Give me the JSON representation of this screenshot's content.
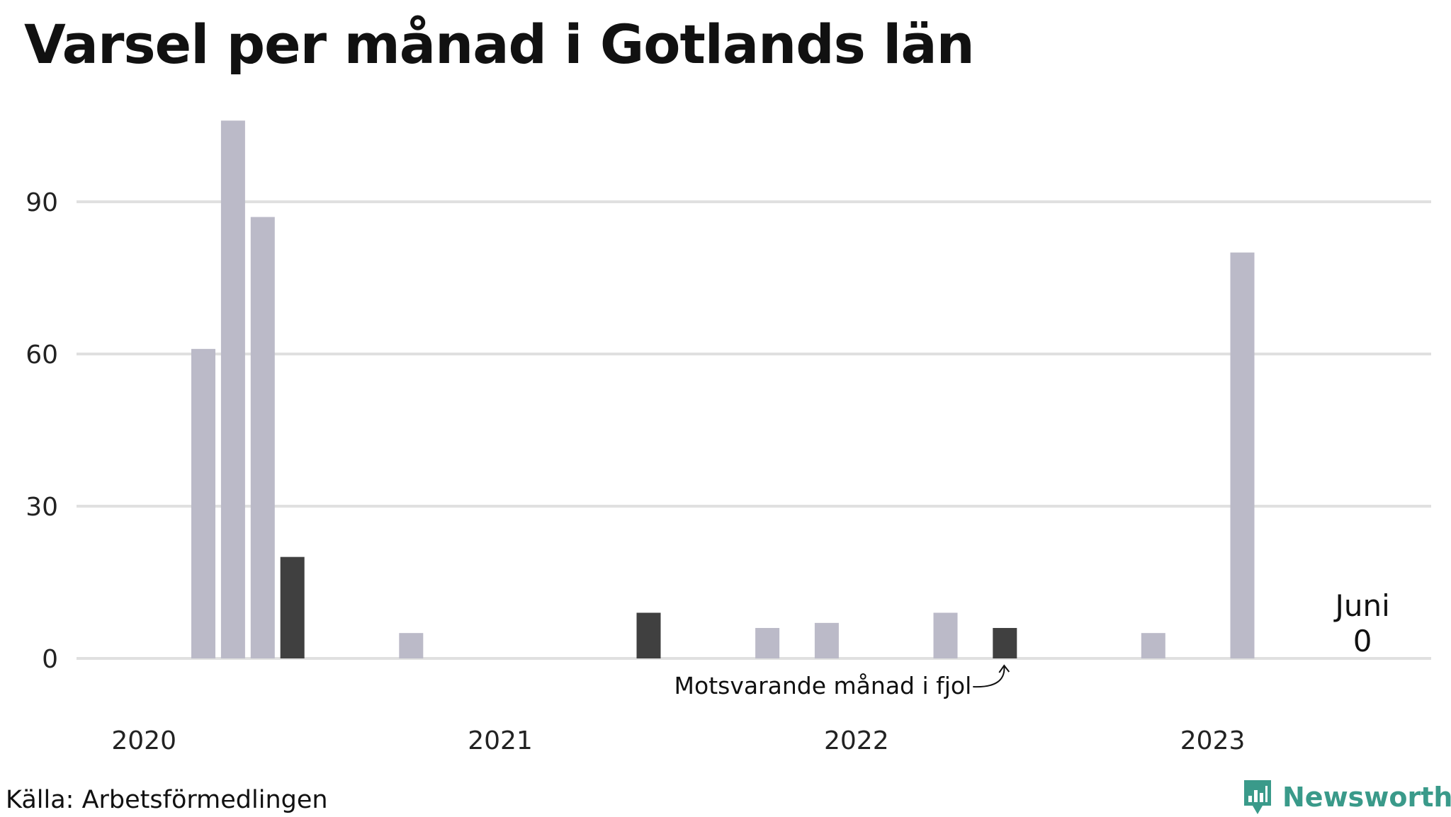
{
  "title": "Varsel per månad i Gotlands län",
  "source": "Källa: Arbetsförmedlingen",
  "brand": {
    "name": "Newsworthy",
    "icon": "newsworthy-logo-icon",
    "color": "#3a9a8a"
  },
  "chart_data": {
    "type": "bar",
    "ylim": [
      0,
      106
    ],
    "y_ticks": [
      0,
      30,
      60,
      90
    ],
    "grid": true,
    "x_start": "2020-01",
    "x_end": "2023-06",
    "x_year_labels": [
      "2020",
      "2021",
      "2022",
      "2023"
    ],
    "colors": {
      "bar": "#bbbac8",
      "highlight": "#404040",
      "grid": "#e0e0e0"
    },
    "bars": [
      {
        "month": "2020-03",
        "value": 61
      },
      {
        "month": "2020-04",
        "value": 106
      },
      {
        "month": "2020-05",
        "value": 87
      },
      {
        "month": "2020-06",
        "value": 20,
        "highlight": true
      },
      {
        "month": "2020-10",
        "value": 5
      },
      {
        "month": "2021-06",
        "value": 9,
        "highlight": true
      },
      {
        "month": "2021-10",
        "value": 6
      },
      {
        "month": "2021-12",
        "value": 7
      },
      {
        "month": "2022-04",
        "value": 9
      },
      {
        "month": "2022-06",
        "value": 6,
        "highlight": true
      },
      {
        "month": "2022-11",
        "value": 5
      },
      {
        "month": "2023-02",
        "value": 80
      },
      {
        "month": "2023-06",
        "value": 0
      }
    ],
    "annotation": {
      "text": "Motsvarande månad i fjol",
      "month": "2022-06"
    },
    "last_label": {
      "month_name": "Juni",
      "value": "0"
    }
  }
}
